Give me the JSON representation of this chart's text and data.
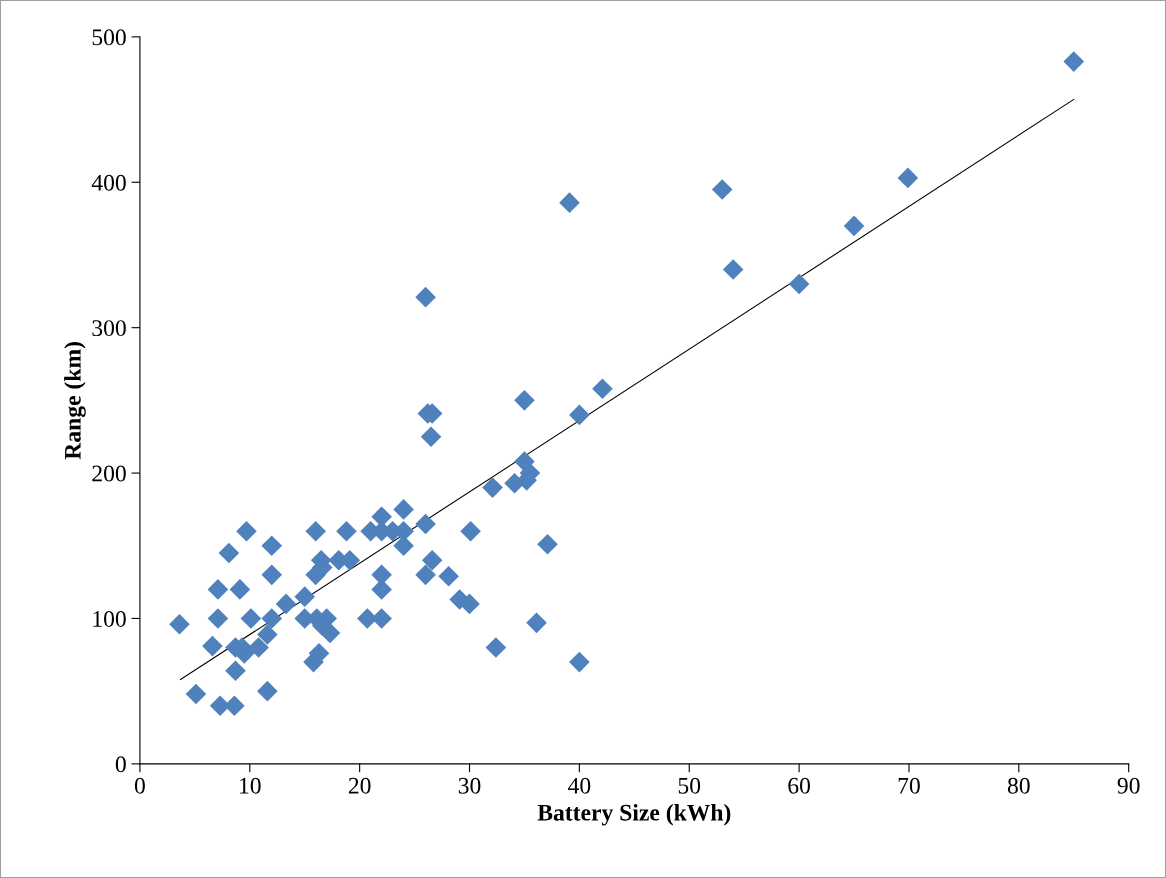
{
  "chart_data": {
    "type": "scatter",
    "xlabel": "Battery Size (kWh)",
    "ylabel": "Range (km)",
    "xlim": [
      0,
      90
    ],
    "xticks": [
      0,
      10,
      20,
      30,
      40,
      50,
      60,
      70,
      80,
      90
    ],
    "ylim": [
      0,
      500
    ],
    "yticks": [
      0,
      100,
      200,
      300,
      400,
      500
    ],
    "grid": false,
    "legend": false,
    "marker": "diamond",
    "series": [
      {
        "color": "#4f81bd",
        "x": [
          3.6,
          5.1,
          6.6,
          7.1,
          7.1,
          7.3,
          8.1,
          8.6,
          8.7,
          8.7,
          9.1,
          9.3,
          9.5,
          9.7,
          10.1,
          10.8,
          11.6,
          11.6,
          12.0,
          12.0,
          12.0,
          13.3,
          15.0,
          15.0,
          15.8,
          16.0,
          16.0,
          16.1,
          16.3,
          16.5,
          16.6,
          16.6,
          17.0,
          17.3,
          18.1,
          18.8,
          19.1,
          20.7,
          21.0,
          22.0,
          22.0,
          22.0,
          22.0,
          22.0,
          23.0,
          24.0,
          24.0,
          24.0,
          26.0,
          26.0,
          26.0,
          26.2,
          26.5,
          26.6,
          26.6,
          28.1,
          29.1,
          30.1,
          30.0,
          32.1,
          32.4,
          34.1,
          35.0,
          35.0,
          35.2,
          35.5,
          36.1,
          37.1,
          39.1,
          40.0,
          40.0,
          42.1,
          53.0,
          54.0,
          60.0,
          65.0,
          69.9,
          85.0
        ],
        "values": [
          96,
          48,
          81,
          100,
          120,
          40,
          145,
          40,
          64,
          80,
          120,
          80,
          76,
          160,
          100,
          80,
          50,
          89,
          150,
          130,
          100,
          110,
          115,
          100,
          70,
          160,
          130,
          100,
          76,
          140,
          135,
          95,
          100,
          90,
          140,
          160,
          140,
          100,
          160,
          170,
          160,
          130,
          120,
          100,
          160,
          175,
          160,
          150,
          321,
          165,
          130,
          241,
          225,
          241,
          140,
          129,
          113,
          160,
          110,
          190,
          80,
          193,
          250,
          208,
          195,
          200,
          97,
          151,
          386,
          240,
          70,
          258,
          395,
          340,
          330,
          370,
          403,
          483
        ]
      },
      {
        "type": "line",
        "color": "#000000",
        "x": [
          3.7,
          85
        ],
        "values": [
          58,
          457
        ],
        "marker": "none",
        "line_style": "solid"
      }
    ]
  }
}
